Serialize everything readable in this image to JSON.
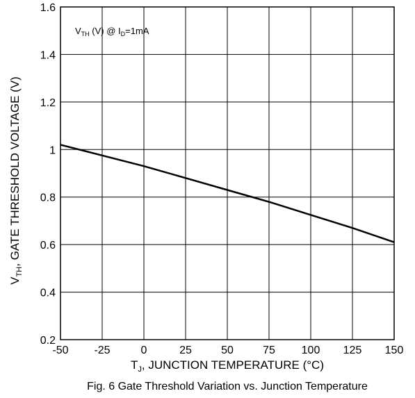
{
  "chart_data": {
    "type": "line",
    "caption": "Fig. 6 Gate Threshold Variation vs. Junction Temperature",
    "xlabel": {
      "main": "T",
      "sub": "J",
      "rest": ", JUNCTION TEMPERATURE (°C)"
    },
    "ylabel": {
      "main": "V",
      "sub": "TH",
      "rest": ", GATE THRESHOLD VOLTAGE (V)"
    },
    "annotation": {
      "p1": "V",
      "s1": "TH",
      "p2": " (V) @ I",
      "s2": "D",
      "p3": "=1mA"
    },
    "xlim": [
      -50,
      150
    ],
    "ylim": [
      0.2,
      1.6
    ],
    "xticks": [
      "-50",
      "-25",
      "0",
      "25",
      "50",
      "75",
      "100",
      "125",
      "150"
    ],
    "yticks": [
      "0.2",
      "0.4",
      "0.6",
      "0.8",
      "1",
      "1.2",
      "1.4",
      "1.6"
    ],
    "grid": true,
    "series": [
      {
        "color": "#000000",
        "x": [
          -50,
          -25,
          0,
          25,
          50,
          75,
          100,
          125,
          150
        ],
        "y": [
          1.02,
          0.975,
          0.93,
          0.88,
          0.83,
          0.78,
          0.725,
          0.67,
          0.61
        ]
      }
    ]
  }
}
